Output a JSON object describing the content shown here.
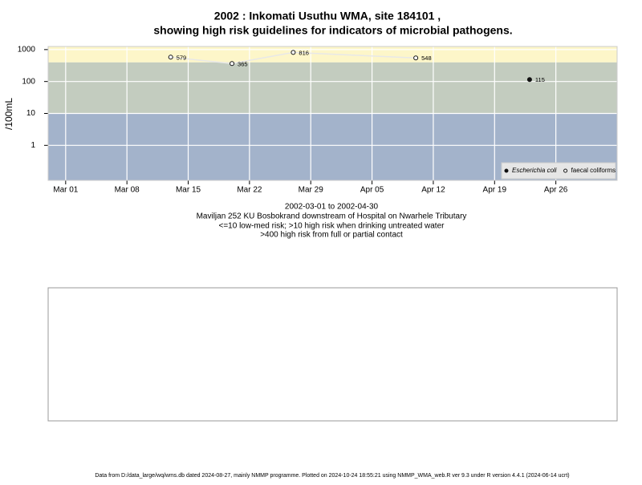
{
  "chart_data": {
    "type": "scatter-line",
    "title": "2002 : Inkomati Usuthu WMA, site 184101 ,",
    "subtitle": "showing high risk guidelines for indicators of microbial pathogens.",
    "ylabel": "/100mL",
    "log_y": true,
    "grid": true,
    "legend": "bottom-right",
    "x": [
      "2002-03-13",
      "2002-03-20",
      "2002-03-27",
      "2002-04-10",
      "2002-04-23"
    ],
    "series": [
      {
        "name": "Escherichia coli",
        "color": "#111111",
        "filled": true,
        "values": [
          null,
          null,
          null,
          null,
          115
        ]
      },
      {
        "name": "faecal coliforms",
        "color": "#111111",
        "filled": false,
        "values": [
          579,
          365,
          816,
          548,
          null
        ]
      }
    ],
    "xlim": [
      "2002-02-27",
      "2002-05-03"
    ],
    "xticks": [
      {
        "value": "2002-03-01",
        "label": "Mar 01"
      },
      {
        "value": "2002-03-08",
        "label": "Mar 08"
      },
      {
        "value": "2002-03-15",
        "label": "Mar 15"
      },
      {
        "value": "2002-03-22",
        "label": "Mar 22"
      },
      {
        "value": "2002-03-29",
        "label": "Mar 29"
      },
      {
        "value": "2002-04-05",
        "label": "Apr 05"
      },
      {
        "value": "2002-04-12",
        "label": "Apr 12"
      },
      {
        "value": "2002-04-19",
        "label": "Apr 19"
      },
      {
        "value": "2002-04-26",
        "label": "Apr 26"
      }
    ],
    "ylim": [
      0.08,
      1250
    ],
    "yticks": [
      1,
      10,
      100,
      1000
    ],
    "bands": [
      {
        "from": 0.08,
        "to": 10,
        "color": "#a3b3cb"
      },
      {
        "from": 10,
        "to": 400,
        "color": "#c3ccbf"
      },
      {
        "from": 400,
        "to": 1250,
        "color": "#fdf6c9"
      }
    ],
    "notes": [
      "2002-03-01 to 2002-04-30",
      "Maviljan 252 KU Bosbokrand downstream of Hospital on Nwarhele Tributary",
      "<=10 low-med risk; >10 high risk when drinking untreated water",
      ">400 high risk from full or partial contact"
    ],
    "footer": "Data from D:/data_large/wq/wms.db dated 2024-08-27, mainly NMMP programme. Plotted on 2024-10-24 18:55:21 using NMMP_WMA_web.R ver 9.3 under R version 4.4.1 (2024-06-14 ucrt)"
  }
}
